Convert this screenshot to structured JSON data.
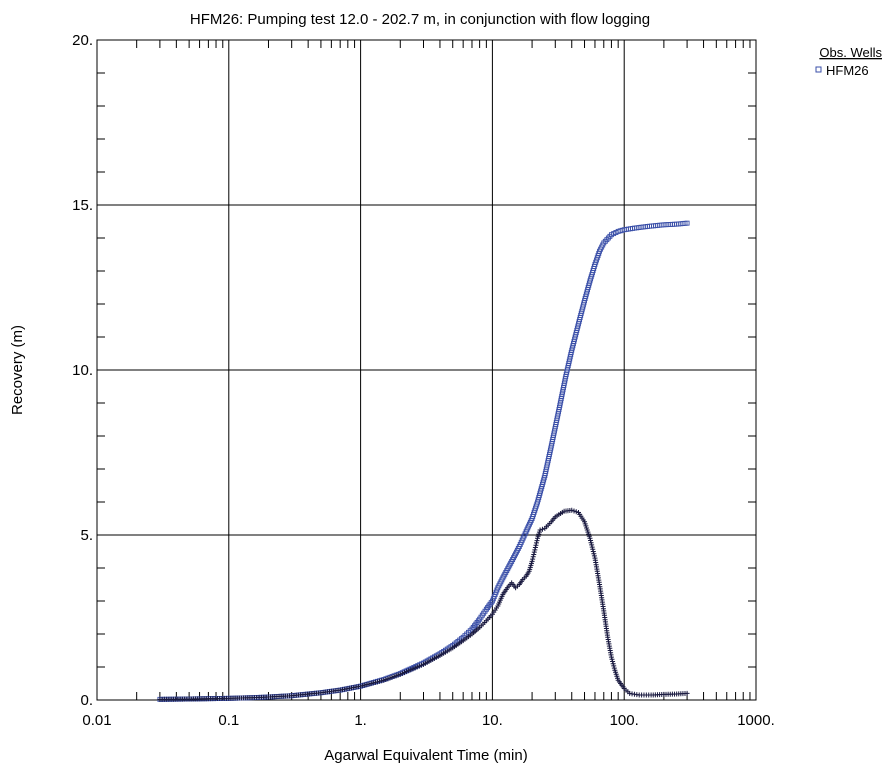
{
  "chart_data": {
    "type": "scatter",
    "title": "HFM26: Pumping test 12.0 - 202.7 m, in conjunction with flow logging",
    "xlabel": "Agarwal Equivalent Time (min)",
    "ylabel": "Recovery (m)",
    "x_scale": "log",
    "xlim": [
      0.01,
      1000
    ],
    "ylim": [
      0,
      20
    ],
    "x_ticks": [
      0.01,
      0.1,
      1,
      10,
      100,
      1000
    ],
    "x_tick_labels": [
      "0.01",
      "0.1",
      "1.",
      "10.",
      "100.",
      "1000."
    ],
    "y_ticks": [
      0,
      5,
      10,
      15,
      20
    ],
    "y_tick_labels": [
      "0.",
      "5.",
      "10.",
      "15.",
      "20."
    ],
    "grid": true,
    "legend": {
      "title": "Obs. Wells",
      "position": "top-right",
      "entries": [
        "HFM26"
      ]
    },
    "series": [
      {
        "name": "HFM26",
        "marker": "square",
        "color": "#3a4fa8",
        "points": [
          [
            0.03,
            0.02
          ],
          [
            0.05,
            0.03
          ],
          [
            0.07,
            0.04
          ],
          [
            0.1,
            0.05
          ],
          [
            0.15,
            0.07
          ],
          [
            0.2,
            0.09
          ],
          [
            0.3,
            0.13
          ],
          [
            0.5,
            0.22
          ],
          [
            0.7,
            0.3
          ],
          [
            1,
            0.42
          ],
          [
            1.5,
            0.62
          ],
          [
            2,
            0.8
          ],
          [
            3,
            1.12
          ],
          [
            4,
            1.4
          ],
          [
            5,
            1.65
          ],
          [
            6,
            1.9
          ],
          [
            7,
            2.15
          ],
          [
            8,
            2.45
          ],
          [
            9,
            2.75
          ],
          [
            10,
            3.0
          ],
          [
            11,
            3.4
          ],
          [
            12,
            3.7
          ],
          [
            14,
            4.2
          ],
          [
            16,
            4.65
          ],
          [
            18,
            5.1
          ],
          [
            20,
            5.5
          ],
          [
            22,
            6.0
          ],
          [
            25,
            6.8
          ],
          [
            28,
            7.7
          ],
          [
            32,
            8.8
          ],
          [
            36,
            9.8
          ],
          [
            40,
            10.6
          ],
          [
            45,
            11.4
          ],
          [
            50,
            12.1
          ],
          [
            55,
            12.7
          ],
          [
            60,
            13.2
          ],
          [
            65,
            13.6
          ],
          [
            70,
            13.85
          ],
          [
            80,
            14.1
          ],
          [
            90,
            14.2
          ],
          [
            100,
            14.25
          ],
          [
            120,
            14.3
          ],
          [
            150,
            14.35
          ],
          [
            200,
            14.4
          ],
          [
            250,
            14.42
          ],
          [
            300,
            14.45
          ]
        ]
      },
      {
        "marker": "plus",
        "color": "#1a1a40",
        "points": [
          [
            0.03,
            0.02
          ],
          [
            0.05,
            0.03
          ],
          [
            0.07,
            0.04
          ],
          [
            0.1,
            0.05
          ],
          [
            0.15,
            0.07
          ],
          [
            0.2,
            0.09
          ],
          [
            0.3,
            0.13
          ],
          [
            0.5,
            0.22
          ],
          [
            0.7,
            0.3
          ],
          [
            1,
            0.42
          ],
          [
            1.5,
            0.6
          ],
          [
            2,
            0.78
          ],
          [
            3,
            1.08
          ],
          [
            4,
            1.35
          ],
          [
            5,
            1.58
          ],
          [
            6,
            1.8
          ],
          [
            7,
            2.0
          ],
          [
            8,
            2.2
          ],
          [
            9,
            2.4
          ],
          [
            10,
            2.6
          ],
          [
            11,
            2.85
          ],
          [
            12,
            3.2
          ],
          [
            13,
            3.4
          ],
          [
            14,
            3.55
          ],
          [
            15,
            3.4
          ],
          [
            16,
            3.5
          ],
          [
            17,
            3.65
          ],
          [
            18,
            3.75
          ],
          [
            19,
            3.9
          ],
          [
            20,
            4.2
          ],
          [
            21,
            4.55
          ],
          [
            22,
            4.9
          ],
          [
            23,
            5.15
          ],
          [
            25,
            5.2
          ],
          [
            28,
            5.4
          ],
          [
            30,
            5.55
          ],
          [
            35,
            5.72
          ],
          [
            40,
            5.75
          ],
          [
            45,
            5.68
          ],
          [
            50,
            5.4
          ],
          [
            55,
            4.9
          ],
          [
            60,
            4.3
          ],
          [
            65,
            3.5
          ],
          [
            70,
            2.7
          ],
          [
            75,
            1.9
          ],
          [
            80,
            1.3
          ],
          [
            85,
            0.9
          ],
          [
            90,
            0.6
          ],
          [
            100,
            0.35
          ],
          [
            110,
            0.2
          ],
          [
            130,
            0.15
          ],
          [
            160,
            0.15
          ],
          [
            200,
            0.17
          ],
          [
            250,
            0.18
          ],
          [
            300,
            0.2
          ]
        ]
      }
    ]
  }
}
